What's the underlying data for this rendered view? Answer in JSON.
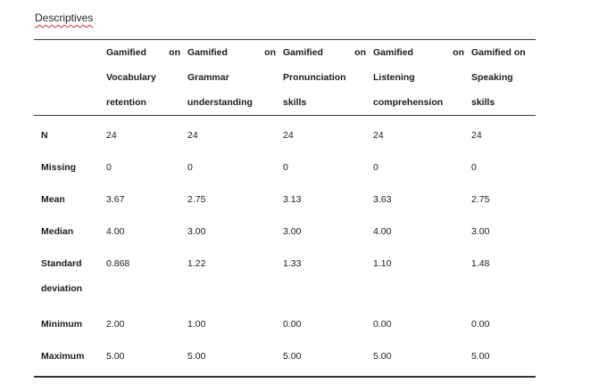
{
  "title": "Descriptives",
  "columns": [
    {
      "line1a": "Gamified",
      "line1b": "on",
      "rest": [
        "Vocabulary",
        "retention"
      ]
    },
    {
      "line1a": "Gamified",
      "line1b": "on",
      "rest": [
        "Grammar",
        "understanding"
      ]
    },
    {
      "line1a": "Gamified",
      "line1b": "on",
      "rest": [
        "Pronunciation",
        "skills"
      ]
    },
    {
      "line1a": "Gamified",
      "line1b": "on",
      "rest": [
        "Listening",
        "comprehension"
      ]
    },
    {
      "line1a": "Gamified on",
      "line1b": "",
      "rest": [
        "Speaking",
        "skills"
      ]
    }
  ],
  "rows": [
    {
      "label": "N",
      "values": [
        "24",
        "24",
        "24",
        "24",
        "24"
      ]
    },
    {
      "label": "Missing",
      "values": [
        "0",
        "0",
        "0",
        "0",
        "0"
      ]
    },
    {
      "label": "Mean",
      "values": [
        "3.67",
        "2.75",
        "3.13",
        "3.63",
        "2.75"
      ]
    },
    {
      "label": "Median",
      "values": [
        "4.00",
        "3.00",
        "3.00",
        "4.00",
        "3.00"
      ]
    },
    {
      "label": "Standard deviation",
      "values": [
        "0.868",
        "1.22",
        "1.33",
        "1.10",
        "1.48"
      ]
    },
    {
      "label": "Minimum",
      "values": [
        "2.00",
        "1.00",
        "0.00",
        "0.00",
        "0.00"
      ]
    },
    {
      "label": "Maximum",
      "values": [
        "5.00",
        "5.00",
        "5.00",
        "5.00",
        "5.00"
      ]
    }
  ]
}
